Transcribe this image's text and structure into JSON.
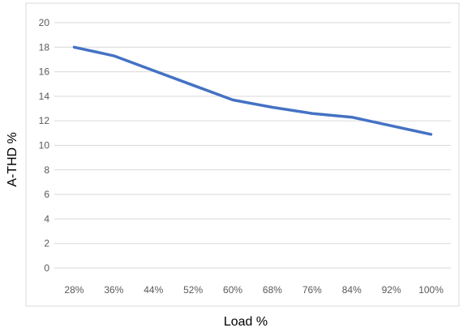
{
  "chart_data": {
    "type": "line",
    "title": "",
    "xlabel": "Load %",
    "ylabel": "A-THD %",
    "categories": [
      "28%",
      "36%",
      "44%",
      "52%",
      "60%",
      "68%",
      "76%",
      "84%",
      "92%",
      "100%"
    ],
    "series": [
      {
        "values": [
          18.0,
          17.3,
          16.1,
          14.9,
          13.7,
          13.1,
          12.6,
          12.3,
          11.6,
          10.9
        ],
        "color": "#4472C4"
      }
    ],
    "ylim": [
      0,
      20
    ],
    "yticks": [
      "0",
      "2",
      "4",
      "6",
      "8",
      "10",
      "12",
      "14",
      "16",
      "18",
      "20"
    ],
    "grid": "horizontal",
    "legend": "none",
    "colors": {
      "gridline": "#d9d9d9",
      "tick_text": "#595959",
      "frame": "#d9d9d9"
    }
  }
}
